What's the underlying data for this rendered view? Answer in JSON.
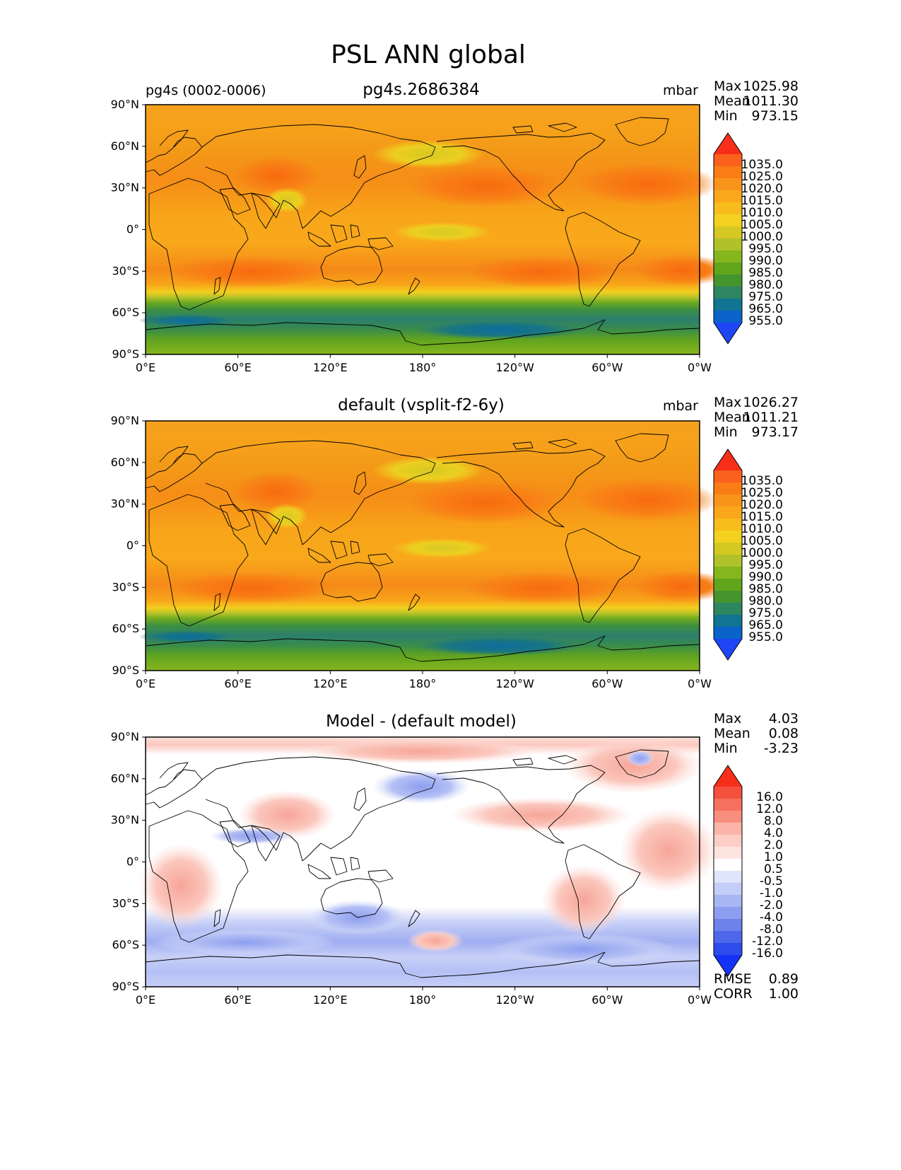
{
  "figure": {
    "title": "PSL ANN global"
  },
  "axes": {
    "lat_ticks": [
      "90°N",
      "60°N",
      "30°N",
      "0°",
      "30°S",
      "60°S",
      "90°S"
    ],
    "lon_ticks": [
      "0°E",
      "60°E",
      "120°E",
      "180°",
      "120°W",
      "60°W",
      "0°W"
    ]
  },
  "panels": [
    {
      "title": "pg4s.2686384",
      "left_label": "pg4s (0002-0006)",
      "units": "mbar",
      "stats": [
        {
          "label": "Max",
          "value": "1025.98"
        },
        {
          "label": "Mean",
          "value": "1011.30"
        },
        {
          "label": "Min",
          "value": "973.15"
        }
      ],
      "extra_stats": []
    },
    {
      "title": "default (vsplit-f2-6y)",
      "left_label": "",
      "units": "mbar",
      "stats": [
        {
          "label": "Max",
          "value": "1026.27"
        },
        {
          "label": "Mean",
          "value": "1011.21"
        },
        {
          "label": "Min",
          "value": "973.17"
        }
      ],
      "extra_stats": []
    },
    {
      "title": "Model - (default model)",
      "left_label": "",
      "units": "",
      "stats": [
        {
          "label": "Max",
          "value": "4.03"
        },
        {
          "label": "Mean",
          "value": "0.08"
        },
        {
          "label": "Min",
          "value": "-3.23"
        }
      ],
      "extra_stats": [
        {
          "label": "RMSE",
          "value": "0.89"
        },
        {
          "label": "CORR",
          "value": "1.00"
        }
      ]
    }
  ],
  "colorbars": {
    "psl": {
      "levels": [
        "1035.0",
        "1025.0",
        "1020.0",
        "1015.0",
        "1010.0",
        "1005.0",
        "1000.0",
        "995.0",
        "990.0",
        "985.0",
        "980.0",
        "975.0",
        "965.0",
        "955.0"
      ],
      "colors": [
        "#f72e1a",
        "#f9611d",
        "#fa7c14",
        "#f9941b",
        "#faa71b",
        "#f7bd1c",
        "#f2d21f",
        "#d5c822",
        "#b0c22a",
        "#86b61d",
        "#61a51c",
        "#44952e",
        "#2e8660",
        "#107493",
        "#0a63c8",
        "#1e46f5"
      ]
    },
    "diff": {
      "levels": [
        "16.0",
        "12.0",
        "8.0",
        "4.0",
        "2.0",
        "1.0",
        "0.5",
        "-0.5",
        "-1.0",
        "-2.0",
        "-4.0",
        "-8.0",
        "-12.0",
        "-16.0"
      ],
      "colors": [
        "#f72e1a",
        "#f4503d",
        "#f6705e",
        "#f88e7d",
        "#fab4a8",
        "#fccec5",
        "#fee4df",
        "#ffffff",
        "#dfe5fb",
        "#c3cdf7",
        "#a9b6f4",
        "#8d9eef",
        "#6d82eb",
        "#4d66ea",
        "#2e4cec",
        "#1432f6"
      ]
    }
  },
  "chart_data": {
    "type": "heatmap",
    "title": "PSL ANN global",
    "variable": "PSL",
    "units": "mbar",
    "x": [
      "0°E",
      "60°E",
      "120°E",
      "180°",
      "120°W",
      "60°W",
      "0°W"
    ],
    "y": [
      "90°N",
      "60°N",
      "30°N",
      "0°",
      "30°S",
      "60°S",
      "90°S"
    ],
    "panels": [
      {
        "name": "pg4s.2686384",
        "max": 1025.98,
        "mean": 1011.3,
        "min": 973.15
      },
      {
        "name": "default (vsplit-f2-6y)",
        "max": 1026.27,
        "mean": 1011.21,
        "min": 973.17
      },
      {
        "name": "Model - (default model)",
        "max": 4.03,
        "mean": 0.08,
        "min": -3.23,
        "rmse": 0.89,
        "corr": 1.0
      }
    ],
    "contour_levels_psl": [
      955,
      965,
      975,
      980,
      985,
      990,
      995,
      1000,
      1005,
      1010,
      1015,
      1020,
      1025,
      1035
    ],
    "contour_levels_diff": [
      -16,
      -12,
      -8,
      -4,
      -2,
      -1,
      -0.5,
      0.5,
      1,
      2,
      4,
      8,
      12,
      16
    ]
  }
}
